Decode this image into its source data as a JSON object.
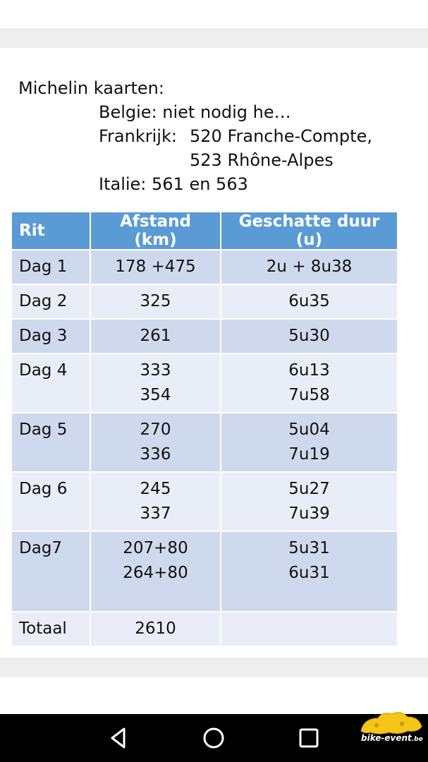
{
  "notes": {
    "heading": "Michelin kaarten:",
    "belgie": "Belgie: niet nodig he…",
    "frankrijk_label": "Frankrijk:",
    "frankrijk_1": "520 Franche-Compte,",
    "frankrijk_2": "523 Rhône-Alpes",
    "italie": "Italie: 561 en 563"
  },
  "table": {
    "headers": [
      "Rit",
      "Afstand (km)",
      "Geschatte duur (u)"
    ],
    "rows": [
      {
        "rit": "Dag 1",
        "afstand": [
          "178 +475"
        ],
        "duur": [
          "2u + 8u38"
        ]
      },
      {
        "rit": "Dag 2",
        "afstand": [
          "325"
        ],
        "duur": [
          "6u35"
        ]
      },
      {
        "rit": "Dag 3",
        "afstand": [
          "261"
        ],
        "duur": [
          "5u30"
        ]
      },
      {
        "rit": "Dag 4",
        "afstand": [
          "333",
          "354"
        ],
        "duur": [
          "6u13",
          "7u58"
        ]
      },
      {
        "rit": "Dag 5",
        "afstand": [
          "270",
          "336"
        ],
        "duur": [
          "5u04",
          "7u19"
        ]
      },
      {
        "rit": "Dag 6",
        "afstand": [
          "245",
          "337"
        ],
        "duur": [
          "5u27",
          "7u39"
        ]
      },
      {
        "rit": "Dag7",
        "afstand": [
          "207+80",
          "264+80"
        ],
        "duur": [
          "5u31",
          "6u31"
        ]
      },
      {
        "rit": "Totaal",
        "afstand": [
          "2610"
        ],
        "duur": [
          ""
        ]
      }
    ]
  },
  "navbar": {
    "back_icon": "triangle-back-icon",
    "home_icon": "circle-home-icon",
    "recents_icon": "square-recents-icon"
  },
  "watermark": {
    "text": "bike-event",
    "suffix": ".be"
  },
  "colors": {
    "header_blue": "#5b9bd5",
    "row_dark": "#cfd9ee",
    "row_light": "#e9edf7",
    "navbar": "#000000",
    "logo_yellow": "#f5c518"
  }
}
